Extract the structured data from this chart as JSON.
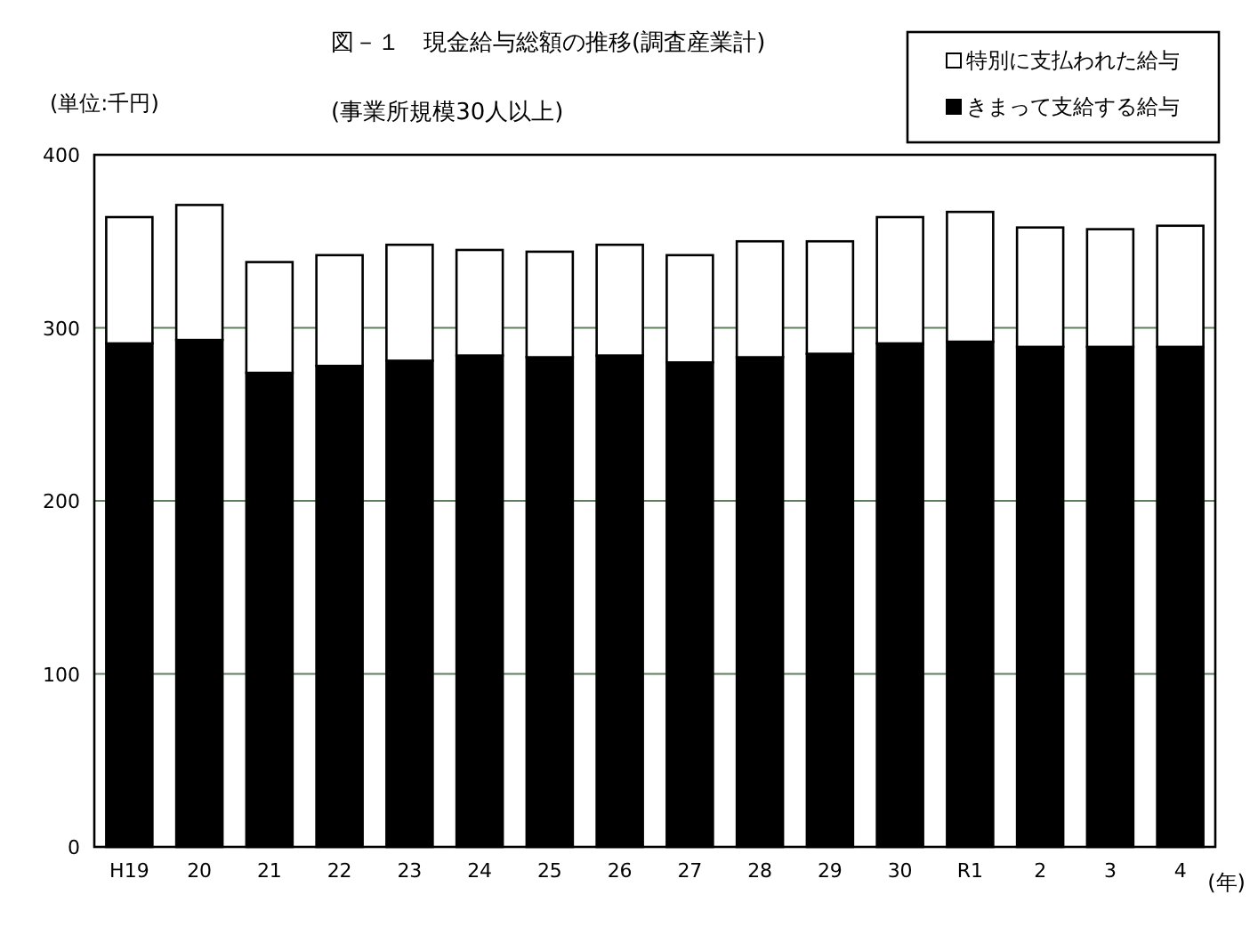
{
  "chart_data": {
    "type": "bar",
    "stacked": true,
    "title": "図－１　現金給与総額の推移(調査産業計)",
    "subtitle": "(事業所規模30人以上)",
    "ylabel": "(単位:千円)",
    "xlabel": "(年)",
    "categories": [
      "H19",
      "20",
      "21",
      "22",
      "23",
      "24",
      "25",
      "26",
      "27",
      "28",
      "29",
      "30",
      "R1",
      "2",
      "3",
      "4"
    ],
    "series": [
      {
        "name": "きまって支給する給与",
        "color": "#000000",
        "values": [
          291,
          293,
          274,
          278,
          281,
          284,
          283,
          284,
          280,
          283,
          285,
          291,
          292,
          289,
          289,
          289
        ]
      },
      {
        "name": "特別に支払われた給与",
        "color": "#ffffff",
        "values": [
          73,
          78,
          64,
          64,
          67,
          61,
          61,
          64,
          62,
          67,
          65,
          73,
          75,
          69,
          68,
          70
        ]
      }
    ],
    "ylim": [
      0,
      400
    ],
    "yticks": [
      0,
      100,
      200,
      300,
      400
    ],
    "grid": "y",
    "legend": "top right"
  }
}
